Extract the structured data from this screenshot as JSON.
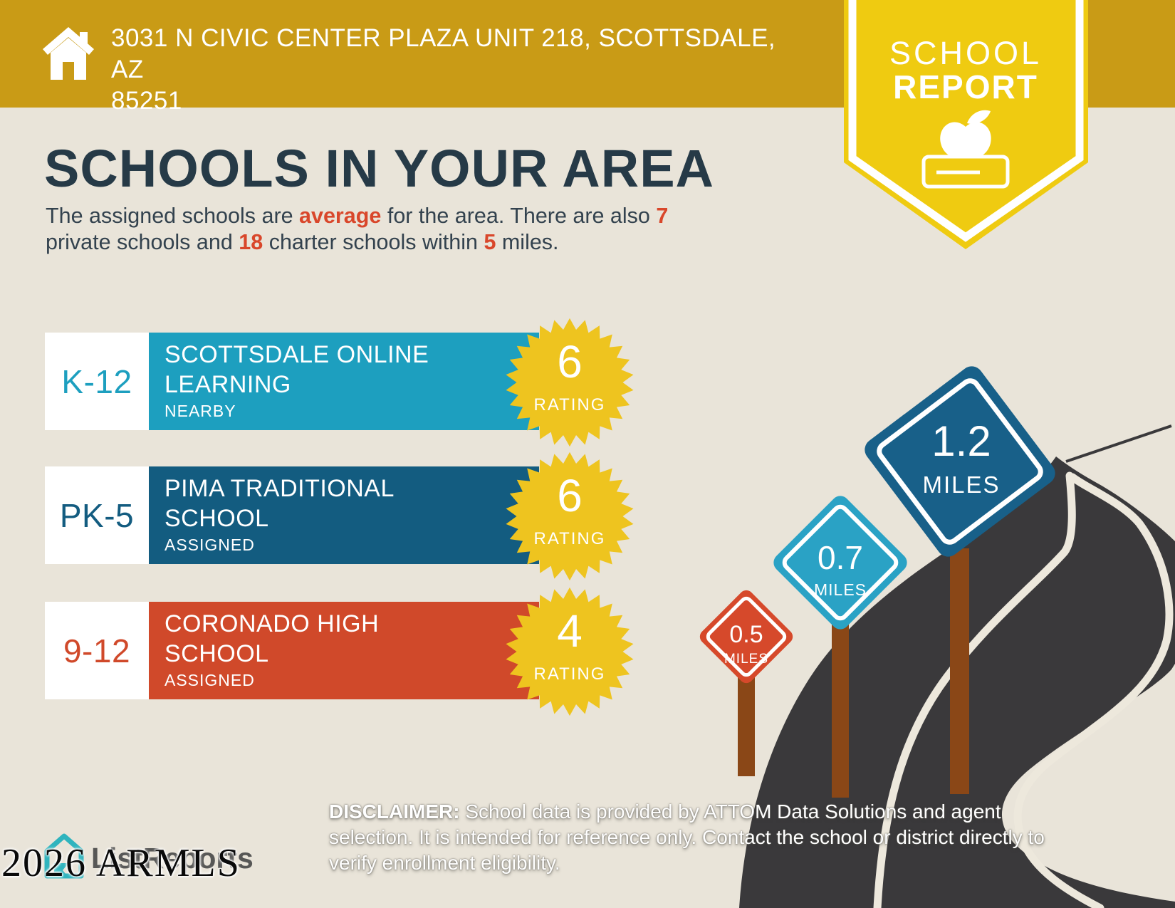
{
  "header": {
    "address_line1": "3031 N CIVIC CENTER PLAZA UNIT 218, SCOTTSDALE, AZ",
    "address_line2": "85251",
    "banner_color": "#C99B16"
  },
  "badge": {
    "line1": "SCHOOL",
    "line2": "REPORT",
    "color": "#EFCB11"
  },
  "main": {
    "title": "SCHOOLS IN YOUR AREA",
    "subtitle_segments": [
      {
        "t": "The assigned schools are "
      },
      {
        "t": "average",
        "a": 1
      },
      {
        "t": " for the area. There are also "
      },
      {
        "t": "7",
        "a": 1
      },
      {
        "t": " private schools and "
      },
      {
        "t": "18",
        "a": 1
      },
      {
        "t": " charter schools within "
      },
      {
        "t": "5",
        "a": 1
      },
      {
        "t": " miles."
      }
    ],
    "accent_color": "#D9472B",
    "title_color": "#263A47"
  },
  "labels": {
    "rating": "RATING"
  },
  "badge_yellow": "#EEC41F",
  "schools": [
    {
      "grades": "K-12",
      "name_line1": "SCOTTSDALE ONLINE",
      "name_line2": "LEARNING",
      "tag": "NEARBY",
      "rating": "6",
      "bar_color": "#1D9FBF"
    },
    {
      "grades": "PK-5",
      "name_line1": "PIMA TRADITIONAL",
      "name_line2": "SCHOOL",
      "tag": "ASSIGNED",
      "rating": "6",
      "bar_color": "#135C80"
    },
    {
      "grades": "9-12",
      "name_line1": "CORONADO HIGH",
      "name_line2": "SCHOOL",
      "tag": "ASSIGNED",
      "rating": "4",
      "bar_color": "#D0492A"
    }
  ],
  "signs": [
    {
      "value": "0.5",
      "unit": "MILES",
      "color": "#D6492B"
    },
    {
      "value": "0.7",
      "unit": "MILES",
      "color": "#2AA2C5"
    },
    {
      "value": "1.2",
      "unit": "MILES",
      "color": "#186089"
    }
  ],
  "road_color": "#3A393B",
  "footer": {
    "logo_text": "ListReports",
    "watermark": "2026 ARMLS",
    "disclaimer_label": "DISCLAIMER:",
    "disclaimer_rest": " School data is provided by ATTOM Data Solutions and agent selection. It is intended for reference only. Contact the school or district directly to verify enrollment eligibility."
  }
}
